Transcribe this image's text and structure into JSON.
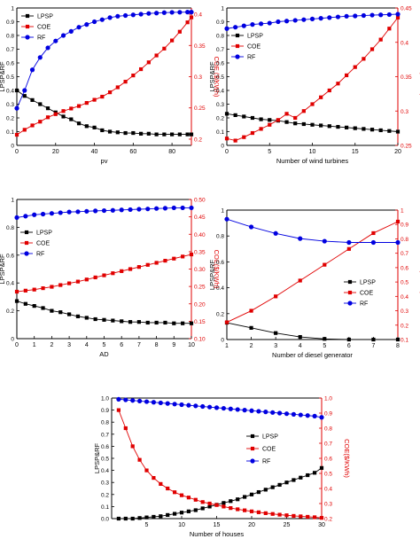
{
  "chart_data": [
    {
      "type": "line",
      "x": [
        0,
        4,
        8,
        12,
        16,
        20,
        24,
        28,
        32,
        36,
        40,
        44,
        48,
        52,
        56,
        60,
        64,
        68,
        72,
        76,
        80,
        84,
        88,
        90
      ],
      "xlabel": "pv",
      "xlim": [
        0,
        90
      ],
      "xticks": [
        0,
        20,
        40,
        60,
        80
      ],
      "ylabel_left": "LPSP&RF",
      "ylim_left": [
        0,
        1.0
      ],
      "yticks_left": [
        "0",
        "0.1",
        "0.2",
        "0.3",
        "0.4",
        "0.5",
        "0.6",
        "0.7",
        "0.8",
        "0.9",
        "1"
      ],
      "ylabel_right": "COE ($/KWh)",
      "ylim_right": [
        0.19,
        0.41
      ],
      "yticks_right": [
        "0.2",
        "0.25",
        "0.3",
        "0.35",
        "0.4"
      ],
      "legend": "top-left",
      "series": [
        {
          "name": "LPSP",
          "axis": "left",
          "color": "#000000",
          "marker": "square",
          "values": [
            0.4,
            0.36,
            0.33,
            0.3,
            0.27,
            0.24,
            0.21,
            0.19,
            0.16,
            0.14,
            0.13,
            0.11,
            0.1,
            0.095,
            0.09,
            0.09,
            0.085,
            0.085,
            0.08,
            0.08,
            0.08,
            0.08,
            0.08,
            0.08
          ]
        },
        {
          "name": "COE",
          "axis": "right",
          "color": "#e00000",
          "marker": "square",
          "values": [
            0.207,
            0.215,
            0.222,
            0.228,
            0.235,
            0.24,
            0.245,
            0.249,
            0.253,
            0.258,
            0.263,
            0.268,
            0.275,
            0.283,
            0.292,
            0.302,
            0.312,
            0.323,
            0.334,
            0.345,
            0.358,
            0.372,
            0.387,
            0.395
          ]
        },
        {
          "name": "RF",
          "axis": "left",
          "color": "#0000e0",
          "marker": "circle",
          "values": [
            0.27,
            0.4,
            0.55,
            0.64,
            0.71,
            0.76,
            0.8,
            0.83,
            0.86,
            0.88,
            0.9,
            0.915,
            0.93,
            0.94,
            0.945,
            0.95,
            0.955,
            0.96,
            0.963,
            0.966,
            0.968,
            0.969,
            0.97,
            0.97
          ]
        }
      ]
    },
    {
      "type": "line",
      "x": [
        0,
        1,
        2,
        3,
        4,
        5,
        6,
        7,
        8,
        9,
        10,
        11,
        12,
        13,
        14,
        15,
        16,
        17,
        18,
        19,
        20
      ],
      "xlabel": "Number of wind turbines",
      "xlim": [
        0,
        20
      ],
      "xticks": [
        0,
        5,
        10,
        15,
        20
      ],
      "ylabel_left": "LPSP&RF",
      "ylim_left": [
        0,
        1.0
      ],
      "yticks_left": [
        "0",
        "0.1",
        "0.2",
        "0.3",
        "0.4",
        "0.5",
        "0.6",
        "0.7",
        "0.8",
        "0.9",
        "1"
      ],
      "ylabel_right": "COE($/KWh)",
      "ylim_right": [
        0.25,
        0.45
      ],
      "yticks_right": [
        "0.25",
        "0.3",
        "0.35",
        "0.4",
        "0.45"
      ],
      "legend": "top-left",
      "series": [
        {
          "name": "LPSP",
          "axis": "left",
          "color": "#000000",
          "marker": "square",
          "values": [
            0.23,
            0.22,
            0.21,
            0.2,
            0.19,
            0.185,
            0.18,
            0.17,
            0.16,
            0.155,
            0.15,
            0.145,
            0.14,
            0.135,
            0.13,
            0.125,
            0.12,
            0.115,
            0.11,
            0.105,
            0.1
          ]
        },
        {
          "name": "COE",
          "axis": "right",
          "color": "#e00000",
          "marker": "square",
          "values": [
            0.26,
            0.257,
            0.262,
            0.268,
            0.274,
            0.28,
            0.287,
            0.296,
            0.29,
            0.3,
            0.31,
            0.32,
            0.33,
            0.34,
            0.352,
            0.364,
            0.376,
            0.39,
            0.404,
            0.42,
            0.436
          ]
        },
        {
          "name": "RF",
          "axis": "left",
          "color": "#0000e0",
          "marker": "circle",
          "values": [
            0.85,
            0.86,
            0.87,
            0.88,
            0.885,
            0.89,
            0.9,
            0.905,
            0.91,
            0.915,
            0.92,
            0.925,
            0.93,
            0.935,
            0.94,
            0.942,
            0.945,
            0.948,
            0.95,
            0.952,
            0.955
          ]
        }
      ]
    },
    {
      "type": "line",
      "x": [
        0,
        0.5,
        1,
        1.5,
        2,
        2.5,
        3,
        3.5,
        4,
        4.5,
        5,
        5.5,
        6,
        6.5,
        7,
        7.5,
        8,
        8.5,
        9,
        9.5,
        10
      ],
      "xlabel": "AD",
      "xlim": [
        0,
        10
      ],
      "xticks": [
        0,
        1,
        2,
        3,
        4,
        5,
        6,
        7,
        8,
        9,
        10
      ],
      "ylabel_left": "LPSP&RF",
      "ylim_left": [
        0,
        1.0
      ],
      "yticks_left": [
        "0",
        "0.2",
        "0.4",
        "0.6",
        "0.8",
        "1"
      ],
      "ylabel_right": "COE($/KWh)",
      "ylim_right": [
        0.1,
        0.5
      ],
      "yticks_right": [
        "0.10",
        "0.15",
        "0.20",
        "0.25",
        "0.30",
        "0.35",
        "0.40",
        "0.45",
        "0.50"
      ],
      "legend": "left",
      "series": [
        {
          "name": "LPSP",
          "axis": "left",
          "color": "#000000",
          "marker": "square",
          "values": [
            0.27,
            0.25,
            0.235,
            0.22,
            0.2,
            0.19,
            0.175,
            0.16,
            0.15,
            0.14,
            0.135,
            0.13,
            0.125,
            0.12,
            0.12,
            0.115,
            0.115,
            0.115,
            0.11,
            0.11,
            0.11
          ]
        },
        {
          "name": "COE",
          "axis": "right",
          "color": "#e00000",
          "marker": "square",
          "values": [
            0.235,
            0.238,
            0.241,
            0.245,
            0.249,
            0.254,
            0.259,
            0.264,
            0.27,
            0.276,
            0.282,
            0.288,
            0.294,
            0.3,
            0.306,
            0.312,
            0.318,
            0.324,
            0.33,
            0.336,
            0.342
          ]
        },
        {
          "name": "RF",
          "axis": "left",
          "color": "#0000e0",
          "marker": "circle",
          "values": [
            0.87,
            0.88,
            0.89,
            0.895,
            0.9,
            0.905,
            0.91,
            0.912,
            0.915,
            0.918,
            0.92,
            0.922,
            0.925,
            0.927,
            0.93,
            0.932,
            0.935,
            0.937,
            0.94,
            0.94,
            0.94
          ]
        }
      ]
    },
    {
      "type": "line",
      "x": [
        1,
        2,
        3,
        4,
        5,
        6,
        7,
        8
      ],
      "xlabel": "Number of diesel generator",
      "xlim": [
        1,
        8
      ],
      "xticks": [
        1,
        2,
        3,
        4,
        5,
        6,
        7,
        8
      ],
      "ylabel_left": "LPSP&RF",
      "ylim_left": [
        0,
        1.0
      ],
      "yticks_left": [
        "0",
        "0.2",
        "0.4",
        "0.6",
        "0.8",
        "1"
      ],
      "ylabel_right": "COE($/KWh)",
      "ylim_right": [
        0.1,
        1.0
      ],
      "yticks_right": [
        "0.1",
        "0.2",
        "0.3",
        "0.4",
        "0.5",
        "0.6",
        "0.7",
        "0.8",
        "0.9",
        "1"
      ],
      "legend": "bottom-right",
      "series": [
        {
          "name": "LPSP",
          "axis": "left",
          "color": "#000000",
          "marker": "square",
          "values": [
            0.13,
            0.09,
            0.05,
            0.02,
            0.005,
            0.0,
            0.0,
            0.0
          ]
        },
        {
          "name": "COE",
          "axis": "right",
          "color": "#e00000",
          "marker": "square",
          "values": [
            0.22,
            0.3,
            0.4,
            0.51,
            0.62,
            0.73,
            0.84,
            0.92
          ]
        },
        {
          "name": "RF",
          "axis": "left",
          "color": "#0000e0",
          "marker": "circle",
          "values": [
            0.93,
            0.87,
            0.82,
            0.78,
            0.76,
            0.75,
            0.75,
            0.75
          ]
        }
      ]
    },
    {
      "type": "line",
      "x": [
        1,
        2,
        3,
        4,
        5,
        6,
        7,
        8,
        9,
        10,
        11,
        12,
        13,
        14,
        15,
        16,
        17,
        18,
        19,
        20,
        21,
        22,
        23,
        24,
        25,
        26,
        27,
        28,
        29,
        30
      ],
      "xlabel": "Number of houses",
      "xlim": [
        0,
        30
      ],
      "xticks": [
        5,
        10,
        15,
        20,
        25,
        30
      ],
      "ylabel_left": "LPSP&RF",
      "ylim_left": [
        0,
        1.0
      ],
      "yticks_left": [
        "0.0",
        "0.1",
        "0.2",
        "0.3",
        "0.4",
        "0.5",
        "0.6",
        "0.7",
        "0.8",
        "0.9",
        "1.0"
      ],
      "ylabel_right": "COE($/KWh)",
      "ylim_right": [
        0.2,
        1.0
      ],
      "yticks_right": [
        "0.2",
        "0.3",
        "0.4",
        "0.5",
        "0.6",
        "0.7",
        "0.8",
        "0.9",
        "1.0"
      ],
      "legend": "center-right",
      "series": [
        {
          "name": "LPSP",
          "axis": "left",
          "color": "#000000",
          "marker": "square",
          "values": [
            0.0,
            0.0,
            0.0,
            0.005,
            0.01,
            0.015,
            0.02,
            0.03,
            0.04,
            0.05,
            0.06,
            0.07,
            0.085,
            0.1,
            0.115,
            0.13,
            0.145,
            0.16,
            0.18,
            0.2,
            0.22,
            0.24,
            0.26,
            0.28,
            0.3,
            0.32,
            0.34,
            0.36,
            0.38,
            0.42
          ]
        },
        {
          "name": "COE",
          "axis": "right",
          "color": "#e00000",
          "marker": "square",
          "values": [
            0.92,
            0.8,
            0.68,
            0.59,
            0.52,
            0.47,
            0.43,
            0.4,
            0.375,
            0.355,
            0.34,
            0.325,
            0.31,
            0.3,
            0.29,
            0.28,
            0.27,
            0.262,
            0.255,
            0.248,
            0.242,
            0.236,
            0.231,
            0.226,
            0.222,
            0.218,
            0.215,
            0.212,
            0.209,
            0.205
          ]
        },
        {
          "name": "RF",
          "axis": "left",
          "color": "#0000e0",
          "marker": "circle",
          "values": [
            0.99,
            0.985,
            0.98,
            0.975,
            0.97,
            0.965,
            0.96,
            0.955,
            0.95,
            0.945,
            0.94,
            0.935,
            0.93,
            0.925,
            0.92,
            0.915,
            0.91,
            0.905,
            0.9,
            0.895,
            0.89,
            0.885,
            0.88,
            0.875,
            0.87,
            0.865,
            0.86,
            0.855,
            0.85,
            0.84
          ]
        }
      ]
    }
  ]
}
